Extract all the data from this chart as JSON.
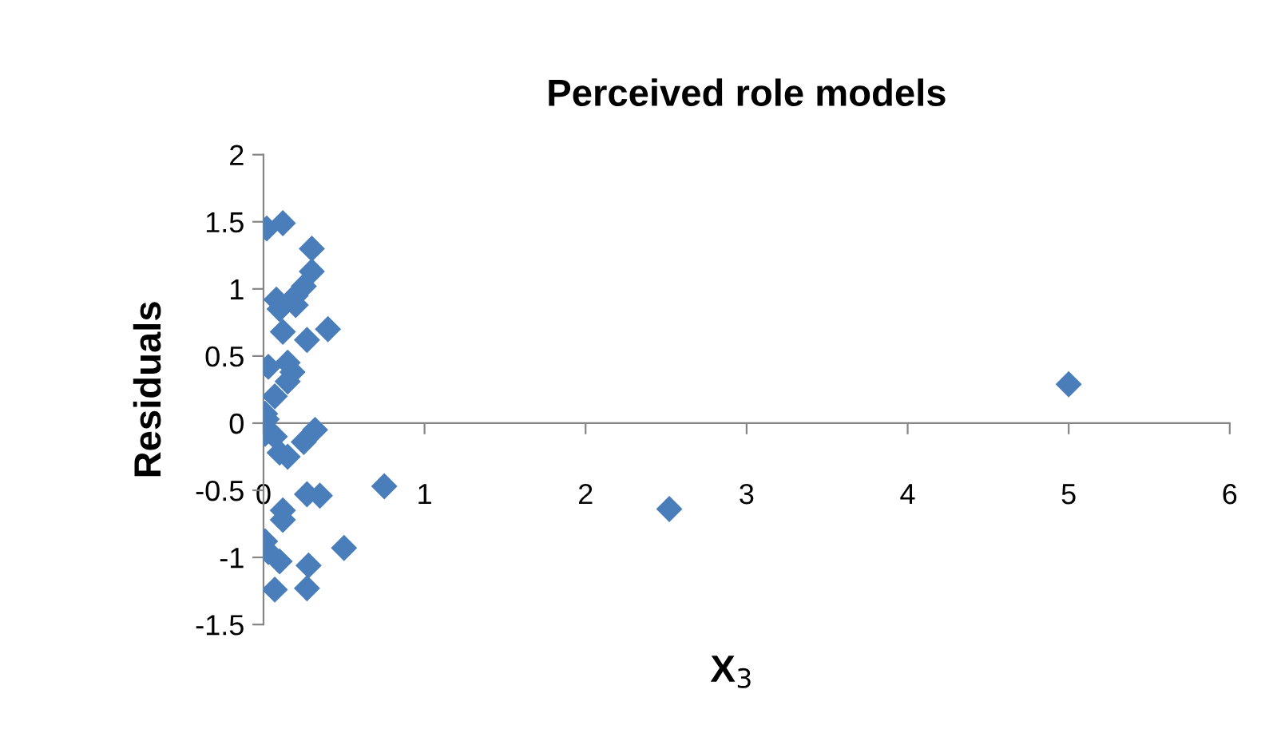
{
  "chart_data": {
    "type": "scatter",
    "title": "Perceived role models",
    "xlabel": "X$_{3}$",
    "ylabel": "Residuals",
    "x": [
      0.02,
      0.12,
      0.3,
      0.3,
      0.25,
      0.2,
      0.08,
      0.1,
      0.2,
      0.12,
      0.27,
      0.4,
      0.03,
      0.15,
      0.18,
      0.15,
      0.07,
      0.01,
      0.02,
      0.01,
      0.07,
      0.1,
      0.15,
      0.25,
      0.32,
      0.75,
      0.27,
      0.35,
      0.12,
      0.12,
      0.5,
      0.01,
      0.03,
      0.1,
      0.28,
      0.07,
      0.27,
      2.52,
      5.0
    ],
    "series": [
      {
        "color": "#4a7ebb",
        "values": [
          1.45,
          1.49,
          1.3,
          1.13,
          1.02,
          0.95,
          0.92,
          0.85,
          0.88,
          0.68,
          0.62,
          0.7,
          0.42,
          0.45,
          0.38,
          0.31,
          0.2,
          0.07,
          0.03,
          -0.08,
          -0.1,
          -0.22,
          -0.25,
          -0.14,
          -0.05,
          -0.47,
          -0.53,
          -0.54,
          -0.65,
          -0.72,
          -0.93,
          -0.88,
          -0.96,
          -1.03,
          -1.06,
          -1.24,
          -1.23,
          -0.64,
          0.29
        ]
      }
    ],
    "xlim": [
      0,
      6
    ],
    "xticks": [
      0,
      1,
      2,
      3,
      4,
      5,
      6
    ],
    "ylim": [
      -1.5,
      2
    ],
    "yticks": [
      -1.5,
      -1,
      -0.5,
      0,
      0.5,
      1,
      1.5,
      2
    ],
    "marker": "diamond",
    "grid": false,
    "legend": false
  }
}
